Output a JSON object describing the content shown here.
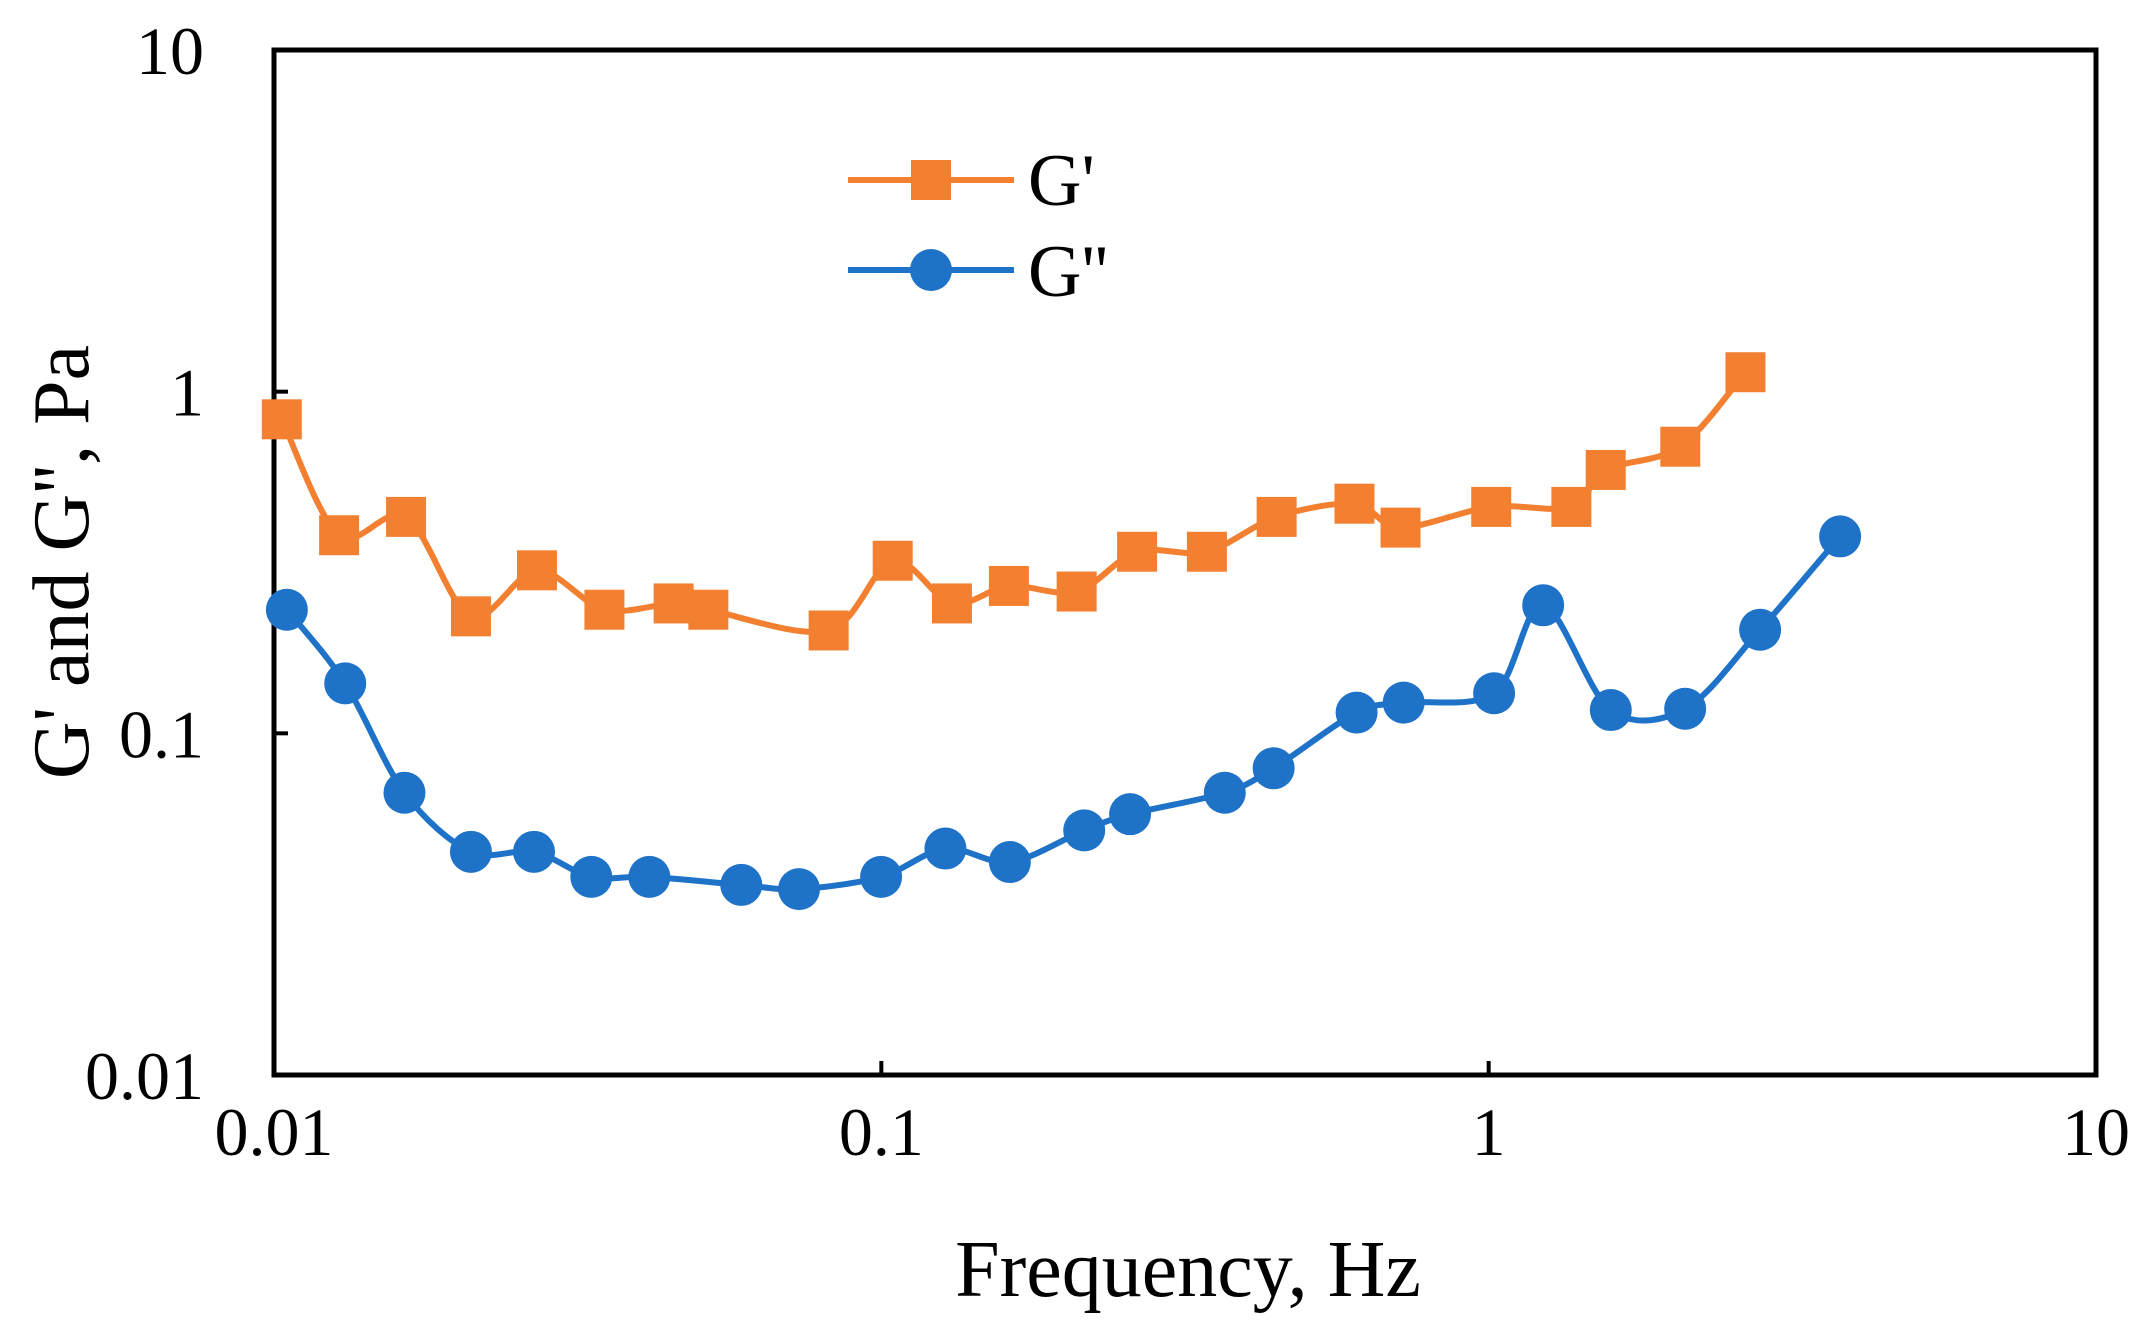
{
  "chart_data": {
    "type": "line",
    "title": "",
    "xlabel": "Frequency, Hz",
    "ylabel": "G' and G'', Pa",
    "xscale": "log",
    "yscale": "log",
    "xlim": [
      0.01,
      10
    ],
    "ylim": [
      0.01,
      10
    ],
    "x_ticks": [
      "0.01",
      "0.1",
      "1",
      "10"
    ],
    "y_ticks": [
      "0.01",
      "0.1",
      "1",
      "10"
    ],
    "grid": false,
    "legend_position": "top-center",
    "series": [
      {
        "name": "G'",
        "color": "#F28030",
        "marker": "square",
        "x": [
          0.0103,
          0.0128,
          0.0165,
          0.0211,
          0.0271,
          0.035,
          0.0455,
          0.0519,
          0.0819,
          0.1044,
          0.1307,
          0.1622,
          0.2097,
          0.2637,
          0.3436,
          0.4476,
          0.6012,
          0.716,
          1.0097,
          1.3683,
          1.5586,
          2.0678,
          2.6474
        ],
        "y": [
          0.83,
          0.38,
          0.43,
          0.22,
          0.3,
          0.23,
          0.24,
          0.23,
          0.2,
          0.32,
          0.24,
          0.27,
          0.26,
          0.34,
          0.34,
          0.43,
          0.47,
          0.4,
          0.46,
          0.46,
          0.59,
          0.69,
          1.14
        ]
      },
      {
        "name": "G''",
        "color": "#1E72C8",
        "marker": "circle",
        "x": [
          0.0105,
          0.0131,
          0.0164,
          0.0211,
          0.0268,
          0.0333,
          0.0415,
          0.0588,
          0.0732,
          0.0999,
          0.1275,
          0.1628,
          0.2158,
          0.2568,
          0.3677,
          0.4425,
          0.6061,
          0.7246,
          1.0208,
          1.2296,
          1.5888,
          2.1064,
          2.7986,
          3.7905
        ],
        "y": [
          0.23,
          0.14,
          0.067,
          0.045,
          0.045,
          0.038,
          0.038,
          0.036,
          0.035,
          0.038,
          0.046,
          0.042,
          0.052,
          0.058,
          0.067,
          0.079,
          0.115,
          0.123,
          0.131,
          0.237,
          0.117,
          0.118,
          0.201,
          0.377
        ]
      }
    ]
  }
}
